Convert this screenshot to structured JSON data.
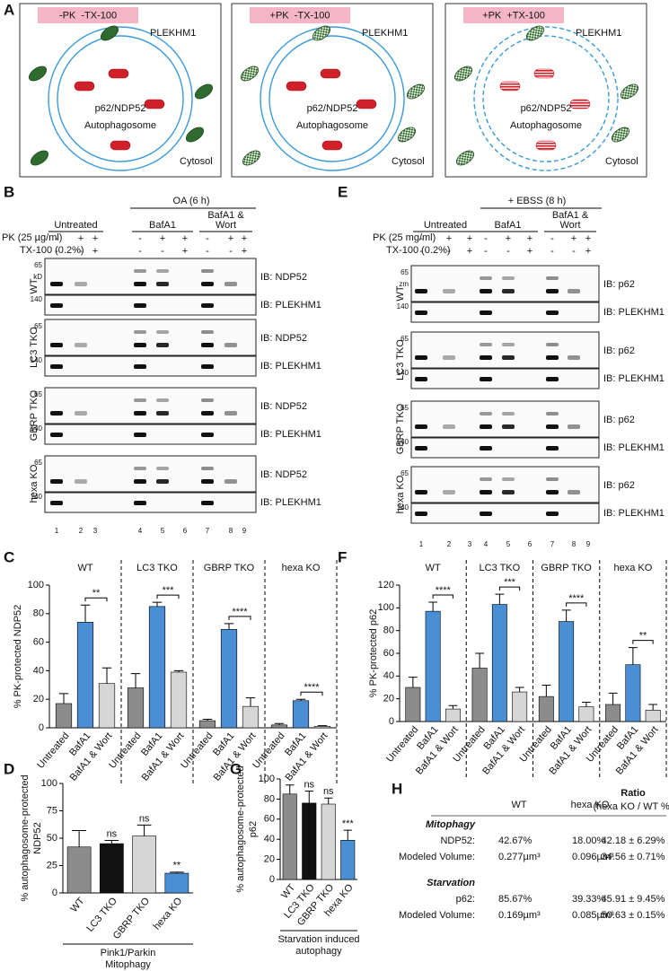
{
  "panel_a": {
    "label": "A",
    "boxes": [
      {
        "condition": "-PK  -TX-100",
        "protein": "PLEKHM1",
        "cargo": "p62/NDP52",
        "compartment": "Autophagosome",
        "cytosol": "Cytosol"
      },
      {
        "condition": "+PK  -TX-100",
        "protein": "PLEKHM1",
        "cargo": "p62/NDP52",
        "compartment": "Autophagosome",
        "cytosol": "Cytosol"
      },
      {
        "condition": "+PK  +TX-100",
        "protein": "PLEKHM1",
        "cargo": "p62/NDP52",
        "compartment": "Autophagosome",
        "cytosol": "Cytosol"
      }
    ]
  },
  "panel_b": {
    "label": "B",
    "treatment": "OA (6 h)",
    "groups": [
      [
        "Untreated"
      ],
      [
        "BafA1"
      ],
      [
        "BafA1 &",
        "Wort"
      ]
    ],
    "pk_label": "PK (25 µg/ml)",
    "tx_label": "TX-100 (0.2%)",
    "pk": [
      "-",
      "+",
      "+",
      "-",
      "+",
      "+",
      "-",
      "+",
      "+"
    ],
    "tx": [
      "-",
      "-",
      "+",
      "-",
      "-",
      "+",
      "-",
      "-",
      "+"
    ],
    "blots": [
      {
        "cell": "WT",
        "top_markers": [
          "65",
          "kD"
        ],
        "bottom_marker": "140",
        "ib_top": "IB: NDP52",
        "ib_bottom": "IB: PLEKHM1"
      },
      {
        "cell": "LC3 TKO",
        "top_markers": [
          "65"
        ],
        "bottom_marker": "140",
        "ib_top": "IB: NDP52",
        "ib_bottom": "IB: PLEKHM1"
      },
      {
        "cell": "GBRP TKO",
        "top_markers": [
          "65"
        ],
        "bottom_marker": "140",
        "ib_top": "IB: NDP52",
        "ib_bottom": "IB: PLEKHM1"
      },
      {
        "cell": "hexa KO",
        "top_markers": [
          "65"
        ],
        "bottom_marker": "140",
        "ib_top": "IB: NDP52",
        "ib_bottom": "IB: PLEKHM1"
      }
    ],
    "lanes": [
      1,
      2,
      3,
      4,
      5,
      6,
      7,
      8,
      9
    ]
  },
  "panel_e": {
    "label": "E",
    "treatment": "+ EBSS (8 h)",
    "groups": [
      [
        "Untreated"
      ],
      [
        "BafA1"
      ],
      [
        "BafA1 &",
        "Wort"
      ]
    ],
    "pk_label": "PK (25 mg/ml)",
    "tx_label": "TX-100 (0.2%)",
    "pk": [
      "-",
      "+",
      "+",
      "-",
      "+",
      "+",
      "-",
      "+",
      "+"
    ],
    "tx": [
      "-",
      "-",
      "+",
      "-",
      "-",
      "+",
      "-",
      "-",
      "+"
    ],
    "blots": [
      {
        "cell": "WT",
        "top_markers": [
          "65",
          "zm"
        ],
        "bottom_marker": "140",
        "ib_top": "IB: p62",
        "ib_bottom": "IB: PLEKHM1"
      },
      {
        "cell": "LC3 TKO",
        "top_markers": [
          "65"
        ],
        "bottom_marker": "140",
        "ib_top": "IB: p62",
        "ib_bottom": "IB: PLEKHM1"
      },
      {
        "cell": "GBRP TKO",
        "top_markers": [
          "65"
        ],
        "bottom_marker": "140",
        "ib_top": "IB: p62",
        "ib_bottom": "IB: PLEKHM1"
      },
      {
        "cell": "hexa KO",
        "top_markers": [
          "65"
        ],
        "bottom_marker": "140",
        "ib_top": "IB: p62",
        "ib_bottom": "IB: PLEKHM1"
      }
    ],
    "lanes": [
      1,
      2,
      3,
      4,
      5,
      6,
      7,
      8,
      9
    ]
  },
  "chart_data": [
    {
      "panel_label": "C",
      "type": "bar",
      "ylabel": [
        "% PK-protected NDP52"
      ],
      "ylim": [
        0,
        100
      ],
      "yticks": [
        0,
        20,
        40,
        60,
        80,
        100
      ],
      "categories": [
        "Untreated",
        "BafA1",
        "BafA1 & Wort"
      ],
      "colors": [
        "#8c8c8c",
        "#4a8fd4",
        "#d6d6d6"
      ],
      "groups": [
        {
          "name": "WT",
          "values": [
            17,
            74,
            31
          ],
          "errors": [
            7,
            12,
            11
          ],
          "significance": "**"
        },
        {
          "name": "LC3 TKO",
          "values": [
            28,
            85,
            39
          ],
          "errors": [
            10,
            3,
            1
          ],
          "significance": "***"
        },
        {
          "name": "GBRP TKO",
          "values": [
            5,
            69,
            15
          ],
          "errors": [
            1,
            4,
            6
          ],
          "significance": "****"
        },
        {
          "name": "hexa KO",
          "values": [
            2,
            19,
            1
          ],
          "errors": [
            1,
            1,
            0.5
          ],
          "significance": "****"
        }
      ]
    },
    {
      "panel_label": "D",
      "type": "bar",
      "ylabel": [
        "% autophagosome-protected",
        "NDP52"
      ],
      "ylim": [
        0,
        100
      ],
      "yticks": [
        0,
        25,
        50,
        75,
        100
      ],
      "categories": [
        "WT",
        "LC3 TKO",
        "GBRP TKO",
        "hexa KO"
      ],
      "values": [
        42,
        45,
        52,
        18
      ],
      "errors": [
        15,
        3,
        10,
        1
      ],
      "colors": [
        "#8c8c8c",
        "#111111",
        "#d6d6d6",
        "#4a8fd4"
      ],
      "annotations": [
        null,
        "ns",
        "ns",
        "**"
      ],
      "xlabel": [
        "Pink1/Parkin",
        "Mitophagy"
      ]
    },
    {
      "panel_label": "F",
      "type": "bar",
      "ylabel": [
        "% PK-protected p62"
      ],
      "ylim": [
        0,
        120
      ],
      "yticks": [
        0,
        20,
        40,
        60,
        80,
        100,
        120
      ],
      "categories": [
        "Untreated",
        "BafA1",
        "BafA1 & Wort"
      ],
      "colors": [
        "#8c8c8c",
        "#4a8fd4",
        "#d6d6d6"
      ],
      "groups": [
        {
          "name": "WT",
          "values": [
            30,
            97,
            11
          ],
          "errors": [
            9,
            8,
            3
          ],
          "significance": "****"
        },
        {
          "name": "LC3 TKO",
          "values": [
            47,
            103,
            26
          ],
          "errors": [
            13,
            9,
            4
          ],
          "significance": "***"
        },
        {
          "name": "GBRP TKO",
          "values": [
            22,
            88,
            13
          ],
          "errors": [
            10,
            10,
            4
          ],
          "significance": "****"
        },
        {
          "name": "hexa KO",
          "values": [
            15,
            50,
            10
          ],
          "errors": [
            10,
            15,
            5
          ],
          "significance": "**"
        }
      ]
    },
    {
      "panel_label": "G",
      "type": "bar",
      "ylabel": [
        "% autophagosome-protected",
        "p62"
      ],
      "ylim": [
        0,
        100
      ],
      "yticks": [
        0,
        20,
        40,
        60,
        80,
        100
      ],
      "categories": [
        "WT",
        "LC3 TKO",
        "GBRP TKO",
        "hexa KO"
      ],
      "values": [
        85,
        76,
        75,
        39
      ],
      "errors": [
        9,
        12,
        6,
        10
      ],
      "colors": [
        "#8c8c8c",
        "#111111",
        "#d6d6d6",
        "#4a8fd4"
      ],
      "annotations": [
        null,
        "ns",
        "ns",
        "***"
      ],
      "xlabel": [
        "Starvation induced",
        "autophagy"
      ]
    }
  ],
  "panel_h": {
    "label": "H",
    "columns": [
      "WT",
      "hexa KO"
    ],
    "ratio_title": "Ratio",
    "ratio_sub": "(hexa KO / WT %)",
    "sections": [
      {
        "title": "Mitophagy",
        "rows": [
          [
            "NDP52:",
            "42.67%",
            "18.00%",
            "42.18 ± 6.29%"
          ],
          [
            "Modeled Volume:",
            "0.277µm³",
            "0.096µm³",
            "34.56 ± 0.71%"
          ]
        ]
      },
      {
        "title": "Starvation",
        "rows": [
          [
            "p62:",
            "85.67%",
            "39.33%",
            "45.91 ± 9.45%"
          ],
          [
            "Modeled Volume:",
            "0.169µm³",
            "0.085µm³",
            "50.63 ± 0.15%"
          ]
        ]
      }
    ]
  }
}
